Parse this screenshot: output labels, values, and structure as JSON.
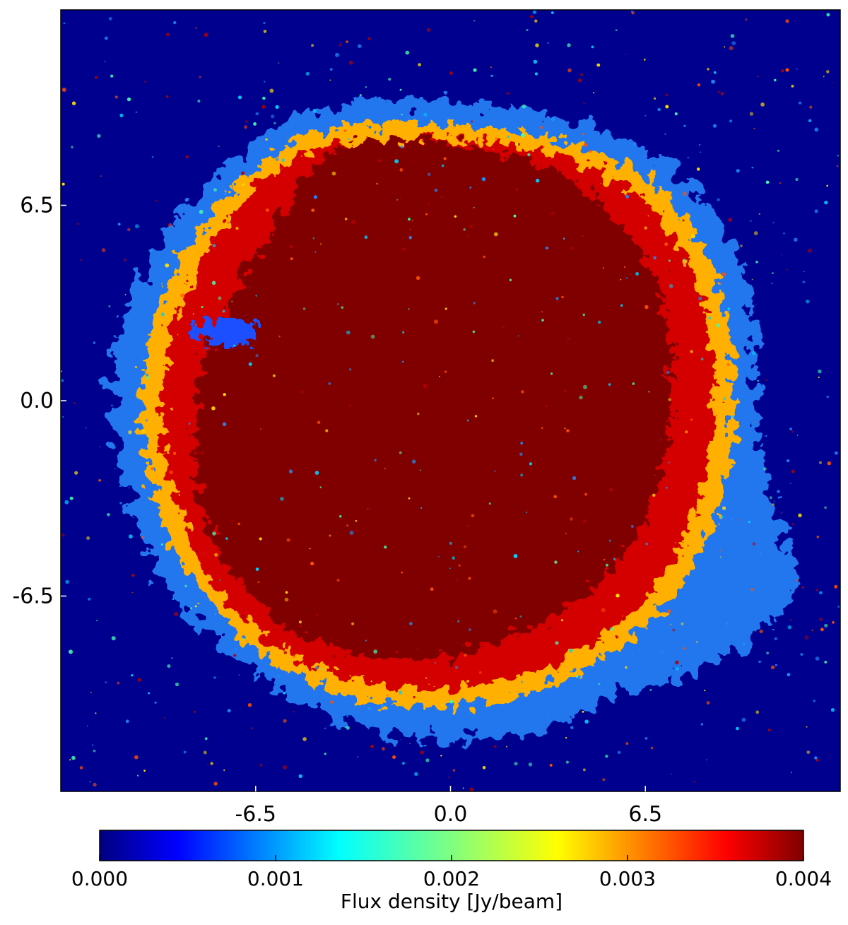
{
  "chart_data": {
    "type": "heatmap",
    "title": "",
    "xlabel": "",
    "ylabel": "",
    "x_ticks": [
      {
        "value": -6.5,
        "label": "-6.5"
      },
      {
        "value": 0.0,
        "label": "0.0"
      },
      {
        "value": 6.5,
        "label": "6.5"
      }
    ],
    "y_ticks": [
      {
        "value": 6.5,
        "label": "6.5"
      },
      {
        "value": 0.0,
        "label": "0.0"
      },
      {
        "value": -6.5,
        "label": "-6.5"
      }
    ],
    "xlim": [
      -13.0,
      13.0
    ],
    "ylim": [
      -13.0,
      13.0
    ],
    "colormap": "jet",
    "colorbar": {
      "label": "Flux density [Jy/beam]",
      "range": [
        0.0,
        0.004
      ],
      "ticks": [
        {
          "value": 0.0,
          "label": "0.000"
        },
        {
          "value": 0.001,
          "label": "0.001"
        },
        {
          "value": 0.002,
          "label": "0.002"
        },
        {
          "value": 0.003,
          "label": "0.003"
        },
        {
          "value": 0.004,
          "label": "0.004"
        }
      ]
    },
    "colors": {
      "background": "#00008f",
      "saturated": "#800000",
      "jet_stops": [
        "#00007f",
        "#0000ff",
        "#007fff",
        "#00ffff",
        "#7fff7f",
        "#ffff00",
        "#ff7f00",
        "#ff0000",
        "#7f0000"
      ]
    },
    "grid": false
  }
}
